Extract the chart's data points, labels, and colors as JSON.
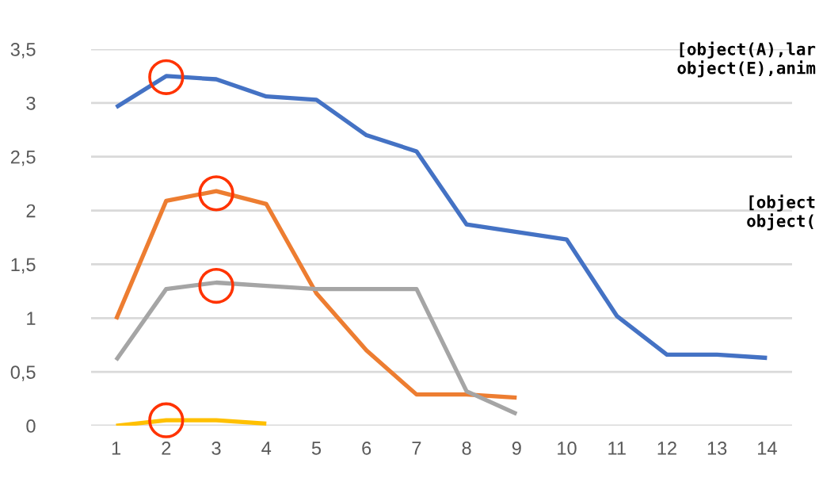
{
  "chart_data": {
    "type": "line",
    "categories": [
      "1",
      "2",
      "3",
      "4",
      "5",
      "6",
      "7",
      "8",
      "9",
      "10",
      "11",
      "12",
      "13",
      "14"
    ],
    "series": [
      {
        "color": "#4472c4",
        "values": [
          2.96,
          3.25,
          3.22,
          3.06,
          3.03,
          2.7,
          2.55,
          1.87,
          1.8,
          1.73,
          1.02,
          0.66,
          0.66,
          0.63
        ]
      },
      {
        "color": "#ed7d31",
        "values": [
          0.99,
          2.09,
          2.18,
          2.06,
          1.23,
          0.7,
          0.29,
          0.29,
          0.26,
          null,
          null,
          null,
          null,
          null
        ]
      },
      {
        "color": "#a5a5a5",
        "values": [
          0.61,
          1.27,
          1.33,
          1.3,
          1.27,
          1.27,
          1.27,
          0.32,
          0.11,
          null,
          null,
          null,
          null,
          null
        ]
      },
      {
        "color": "#ffc000",
        "values": [
          0.0,
          0.05,
          0.05,
          0.02,
          null,
          null,
          null,
          null,
          null,
          null,
          null,
          null,
          null,
          null
        ]
      },
      {
        "type": "scatter",
        "marker": "circle",
        "color": "#ff3300",
        "x": [
          "2",
          "3",
          "3",
          "2"
        ],
        "values": [
          3.24,
          2.16,
          1.3,
          0.05
        ]
      }
    ],
    "ylim": [
      0,
      3.5
    ],
    "yticks": [
      0,
      {
        "value": 0.5,
        "label": "0,5"
      },
      1,
      {
        "value": 1.5,
        "label": "1,5"
      },
      2,
      {
        "value": 2.5,
        "label": "2,5"
      },
      3,
      {
        "value": 3.5,
        "label": "3,5"
      }
    ],
    "grid": "y",
    "marker": "none",
    "line_style": "solid",
    "annotations": [
      "[object(A),lar\nobject(E),anim",
      "[object\nobject("
    ]
  }
}
